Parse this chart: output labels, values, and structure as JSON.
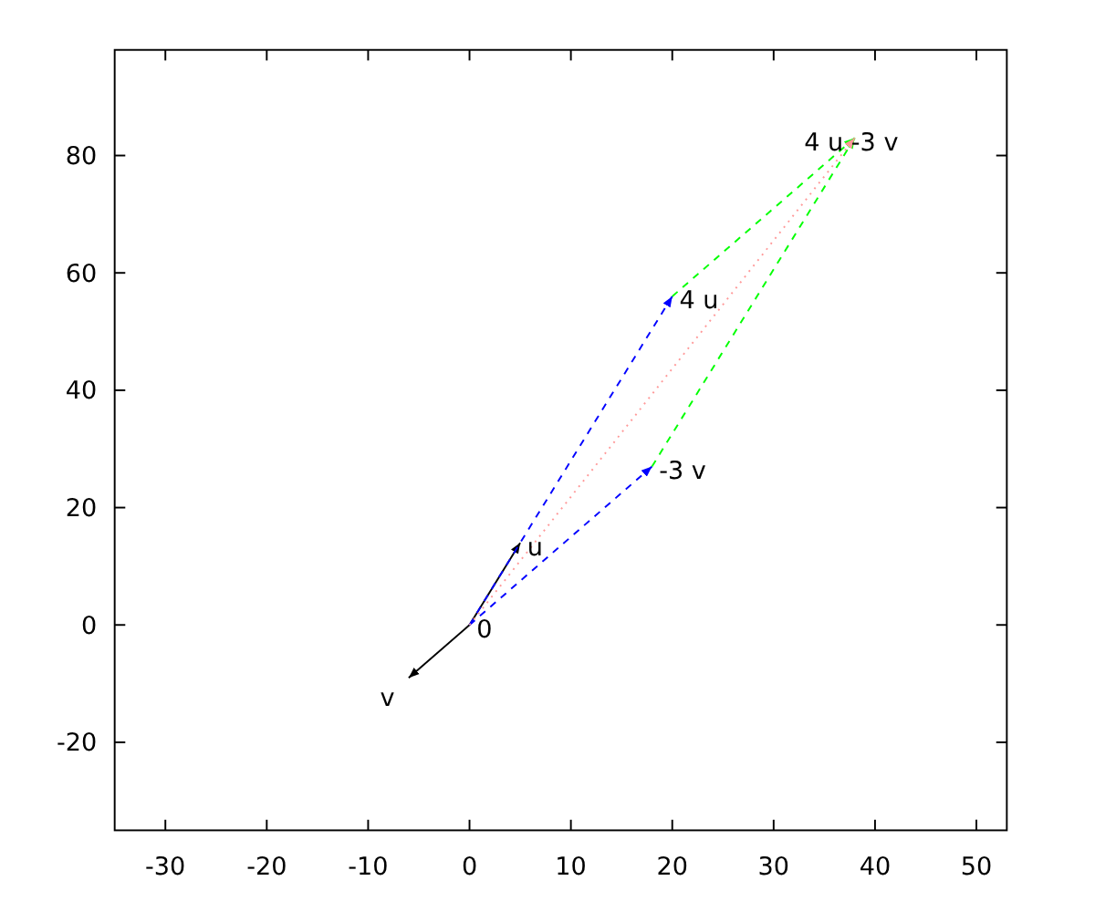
{
  "chart_data": {
    "type": "line",
    "xlim": [
      -35,
      53
    ],
    "ylim": [
      -35,
      98
    ],
    "xticks": [
      -30,
      -20,
      -10,
      0,
      10,
      20,
      30,
      40,
      50
    ],
    "yticks": [
      -20,
      0,
      20,
      40,
      60,
      80
    ],
    "grid": false,
    "marker": "none",
    "series": [
      {
        "color": "#000000",
        "x": [
          0,
          5
        ],
        "values": [
          0,
          14
        ],
        "line_style": "solid"
      },
      {
        "color": "#000000",
        "x": [
          0,
          -6
        ],
        "values": [
          0,
          -9
        ],
        "line_style": "solid"
      },
      {
        "color": "#0000ff",
        "x": [
          0,
          20
        ],
        "values": [
          0,
          56
        ],
        "line_style": "dashed"
      },
      {
        "color": "#0000ff",
        "x": [
          0,
          18
        ],
        "values": [
          0,
          27
        ],
        "line_style": "dashed"
      },
      {
        "color": "#00ff00",
        "x": [
          20,
          38
        ],
        "values": [
          56,
          83
        ],
        "line_style": "dashed"
      },
      {
        "color": "#00ff00",
        "x": [
          18,
          38
        ],
        "values": [
          27,
          83
        ],
        "line_style": "dashed"
      },
      {
        "color": "#ff9999",
        "x": [
          0,
          38
        ],
        "values": [
          0,
          83
        ],
        "line_style": "dotted"
      }
    ],
    "annotations": [
      {
        "text": "0",
        "x": 0,
        "y": 0
      },
      {
        "text": "u",
        "x": 5,
        "y": 14
      },
      {
        "text": "v",
        "x": -6,
        "y": -9
      },
      {
        "text": "4 u",
        "x": 20,
        "y": 56
      },
      {
        "text": "-3 v",
        "x": 18,
        "y": 27
      },
      {
        "text": "4 u -3 v",
        "x": 38,
        "y": 83
      }
    ]
  }
}
